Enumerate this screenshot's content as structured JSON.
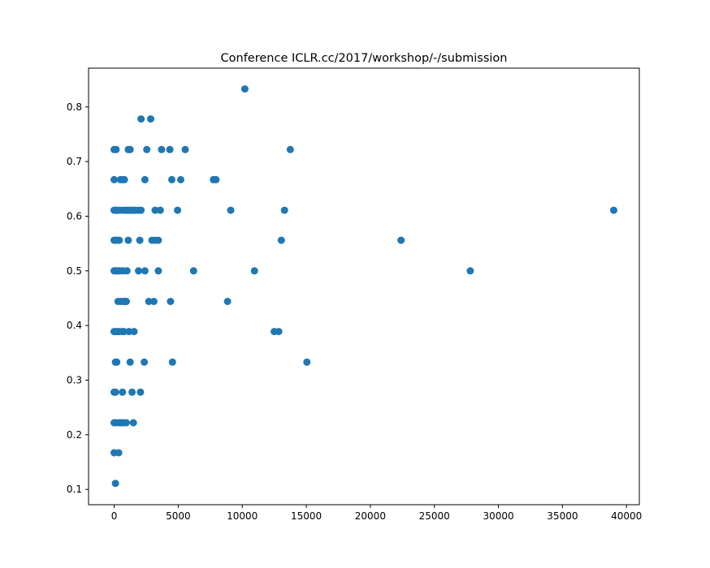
{
  "chart_data": {
    "type": "scatter",
    "title": "Conference ICLR.cc/2017/workshop/-/submission",
    "xlabel": "",
    "ylabel": "",
    "xlim": [
      -2000,
      41000
    ],
    "ylim": [
      0.072,
      0.871
    ],
    "xticks": [
      0,
      5000,
      10000,
      15000,
      20000,
      25000,
      30000,
      35000,
      40000
    ],
    "xtick_labels": [
      "0",
      "5000",
      "10000",
      "15000",
      "20000",
      "25000",
      "30000",
      "35000",
      "40000"
    ],
    "yticks": [
      0.1,
      0.2,
      0.3,
      0.4,
      0.5,
      0.6,
      0.7,
      0.8
    ],
    "ytick_labels": [
      "0.1",
      "0.2",
      "0.3",
      "0.4",
      "0.5",
      "0.6",
      "0.7",
      "0.8"
    ],
    "grid": false,
    "legend": "none",
    "marker_color": "#1f77b4",
    "series": [
      {
        "points": [
          [
            10200,
            0.833
          ],
          [
            2100,
            0.778
          ],
          [
            2850,
            0.778
          ],
          [
            0,
            0.722
          ],
          [
            150,
            0.722
          ],
          [
            1100,
            0.722
          ],
          [
            1250,
            0.722
          ],
          [
            2550,
            0.722
          ],
          [
            3700,
            0.722
          ],
          [
            4350,
            0.722
          ],
          [
            5550,
            0.722
          ],
          [
            13750,
            0.722
          ],
          [
            0,
            0.667
          ],
          [
            500,
            0.667
          ],
          [
            650,
            0.667
          ],
          [
            800,
            0.667
          ],
          [
            2400,
            0.667
          ],
          [
            4500,
            0.667
          ],
          [
            5200,
            0.667
          ],
          [
            7750,
            0.667
          ],
          [
            7950,
            0.667
          ],
          [
            0,
            0.611
          ],
          [
            100,
            0.611
          ],
          [
            200,
            0.611
          ],
          [
            350,
            0.611
          ],
          [
            600,
            0.611
          ],
          [
            850,
            0.611
          ],
          [
            1000,
            0.611
          ],
          [
            1200,
            0.611
          ],
          [
            1350,
            0.611
          ],
          [
            1500,
            0.611
          ],
          [
            1650,
            0.611
          ],
          [
            1900,
            0.611
          ],
          [
            2100,
            0.611
          ],
          [
            3200,
            0.611
          ],
          [
            3600,
            0.611
          ],
          [
            4950,
            0.611
          ],
          [
            9100,
            0.611
          ],
          [
            13300,
            0.611
          ],
          [
            39000,
            0.611
          ],
          [
            0,
            0.556
          ],
          [
            100,
            0.556
          ],
          [
            250,
            0.556
          ],
          [
            400,
            0.556
          ],
          [
            1100,
            0.556
          ],
          [
            2000,
            0.556
          ],
          [
            2950,
            0.556
          ],
          [
            3200,
            0.556
          ],
          [
            3450,
            0.556
          ],
          [
            13050,
            0.556
          ],
          [
            22400,
            0.556
          ],
          [
            0,
            0.5
          ],
          [
            100,
            0.5
          ],
          [
            200,
            0.5
          ],
          [
            300,
            0.5
          ],
          [
            450,
            0.5
          ],
          [
            700,
            0.5
          ],
          [
            1000,
            0.5
          ],
          [
            1900,
            0.5
          ],
          [
            2400,
            0.5
          ],
          [
            3450,
            0.5
          ],
          [
            6200,
            0.5
          ],
          [
            10950,
            0.5
          ],
          [
            27800,
            0.5
          ],
          [
            300,
            0.444
          ],
          [
            550,
            0.444
          ],
          [
            750,
            0.444
          ],
          [
            850,
            0.444
          ],
          [
            950,
            0.444
          ],
          [
            2700,
            0.444
          ],
          [
            3100,
            0.444
          ],
          [
            4400,
            0.444
          ],
          [
            8850,
            0.444
          ],
          [
            0,
            0.389
          ],
          [
            100,
            0.389
          ],
          [
            250,
            0.389
          ],
          [
            400,
            0.389
          ],
          [
            650,
            0.389
          ],
          [
            750,
            0.389
          ],
          [
            1150,
            0.389
          ],
          [
            1550,
            0.389
          ],
          [
            12500,
            0.389
          ],
          [
            12850,
            0.389
          ],
          [
            100,
            0.333
          ],
          [
            200,
            0.333
          ],
          [
            1250,
            0.333
          ],
          [
            2350,
            0.333
          ],
          [
            4550,
            0.333
          ],
          [
            15050,
            0.333
          ],
          [
            0,
            0.278
          ],
          [
            100,
            0.278
          ],
          [
            650,
            0.278
          ],
          [
            1400,
            0.278
          ],
          [
            2050,
            0.278
          ],
          [
            0,
            0.222
          ],
          [
            100,
            0.222
          ],
          [
            350,
            0.222
          ],
          [
            550,
            0.222
          ],
          [
            700,
            0.222
          ],
          [
            950,
            0.222
          ],
          [
            1500,
            0.222
          ],
          [
            0,
            0.167
          ],
          [
            350,
            0.167
          ],
          [
            100,
            0.111
          ]
        ]
      }
    ]
  }
}
